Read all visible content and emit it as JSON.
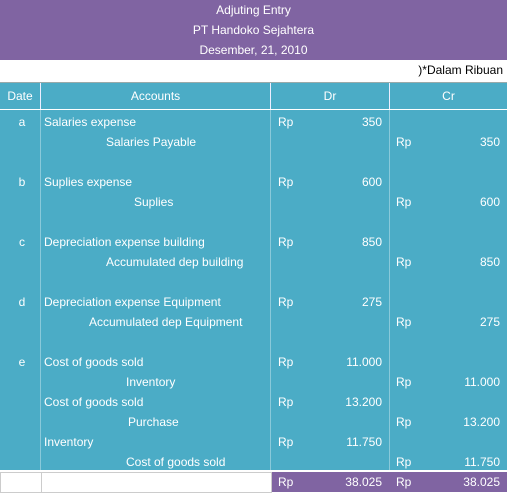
{
  "header": {
    "line1": "Adjuting Entry",
    "line2": "PT Handoko Sejahtera",
    "line3": "Desember, 21, 2010"
  },
  "note": ")*Dalam Ribuan",
  "columns": {
    "date": "Date",
    "accounts": "Accounts",
    "dr": "Dr",
    "cr": "Cr"
  },
  "rows": [
    {
      "date": "a",
      "account": "Salaries expense",
      "rp_dr": "Rp",
      "dr": "350",
      "rp_cr": "",
      "cr": ""
    },
    {
      "date": "",
      "account": "Salaries Payable",
      "rp_dr": "",
      "dr": "",
      "rp_cr": "Rp",
      "cr": "350"
    },
    {
      "date": "b",
      "account": "Suplies expense",
      "rp_dr": "Rp",
      "dr": "600",
      "rp_cr": "",
      "cr": ""
    },
    {
      "date": "",
      "account": "Suplies",
      "rp_dr": "",
      "dr": "",
      "rp_cr": "Rp",
      "cr": "600"
    },
    {
      "date": "c",
      "account": "Depreciation expense building",
      "rp_dr": "Rp",
      "dr": "850",
      "rp_cr": "",
      "cr": ""
    },
    {
      "date": "",
      "account": "Accumulated dep building",
      "rp_dr": "",
      "dr": "",
      "rp_cr": "Rp",
      "cr": "850"
    },
    {
      "date": "d",
      "account": "Depreciation expense Equipment",
      "rp_dr": "Rp",
      "dr": "275",
      "rp_cr": "",
      "cr": ""
    },
    {
      "date": "",
      "account": "Accumulated dep Equipment",
      "rp_dr": "",
      "dr": "",
      "rp_cr": "Rp",
      "cr": "275"
    },
    {
      "date": "e",
      "account": "Cost of goods sold",
      "rp_dr": "Rp",
      "dr": "11.000",
      "rp_cr": "",
      "cr": ""
    },
    {
      "date": "",
      "account": "Inventory",
      "rp_dr": "",
      "dr": "",
      "rp_cr": "Rp",
      "cr": "11.000"
    },
    {
      "date": "",
      "account": "Cost of goods sold",
      "rp_dr": "Rp",
      "dr": "13.200",
      "rp_cr": "",
      "cr": ""
    },
    {
      "date": "",
      "account": "Purchase",
      "rp_dr": "",
      "dr": "",
      "rp_cr": "Rp",
      "cr": "13.200"
    },
    {
      "date": "",
      "account": "Inventory",
      "rp_dr": "Rp",
      "dr": "11.750",
      "rp_cr": "",
      "cr": ""
    },
    {
      "date": "",
      "account": "Cost of goods sold",
      "rp_dr": "",
      "dr": "",
      "rp_cr": "Rp",
      "cr": "11.750"
    }
  ],
  "total": {
    "rp_dr": "Rp",
    "dr": "38.025",
    "rp_cr": "Rp",
    "cr": "38.025"
  }
}
